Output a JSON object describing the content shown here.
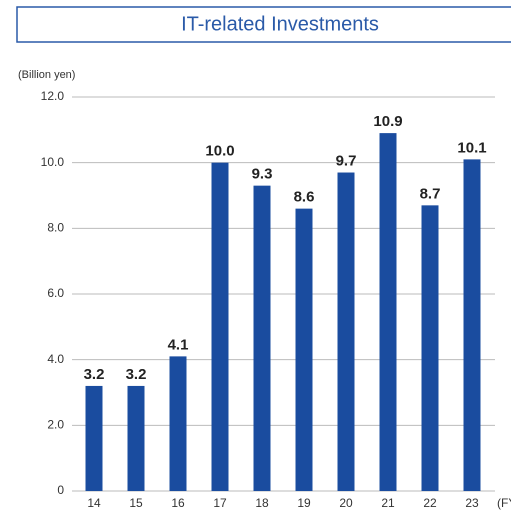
{
  "chart_data": {
    "type": "bar",
    "title": "IT-related Investments",
    "y_label": "(Billion yen)",
    "x_label": "(FY)",
    "categories": [
      "14",
      "15",
      "16",
      "17",
      "18",
      "19",
      "20",
      "21",
      "22",
      "23"
    ],
    "values": [
      3.2,
      3.2,
      4.1,
      10.0,
      9.3,
      8.6,
      9.7,
      10.9,
      8.7,
      10.1
    ],
    "value_labels": [
      "3.2",
      "3.2",
      "4.1",
      "10.0",
      "9.3",
      "8.6",
      "9.7",
      "10.9",
      "8.7",
      "10.1"
    ],
    "color": "#1a4c9f",
    "ylim": [
      0,
      12
    ],
    "yticks": [
      0,
      {
        "value": 2,
        "label": "2.0"
      },
      {
        "value": 4,
        "label": "4.0"
      },
      {
        "value": 6,
        "label": "6.0"
      },
      {
        "value": 8,
        "label": "8.0"
      },
      {
        "value": 10,
        "label": "10.0"
      },
      {
        "value": 12,
        "label": "12.0"
      }
    ],
    "grid": true
  }
}
